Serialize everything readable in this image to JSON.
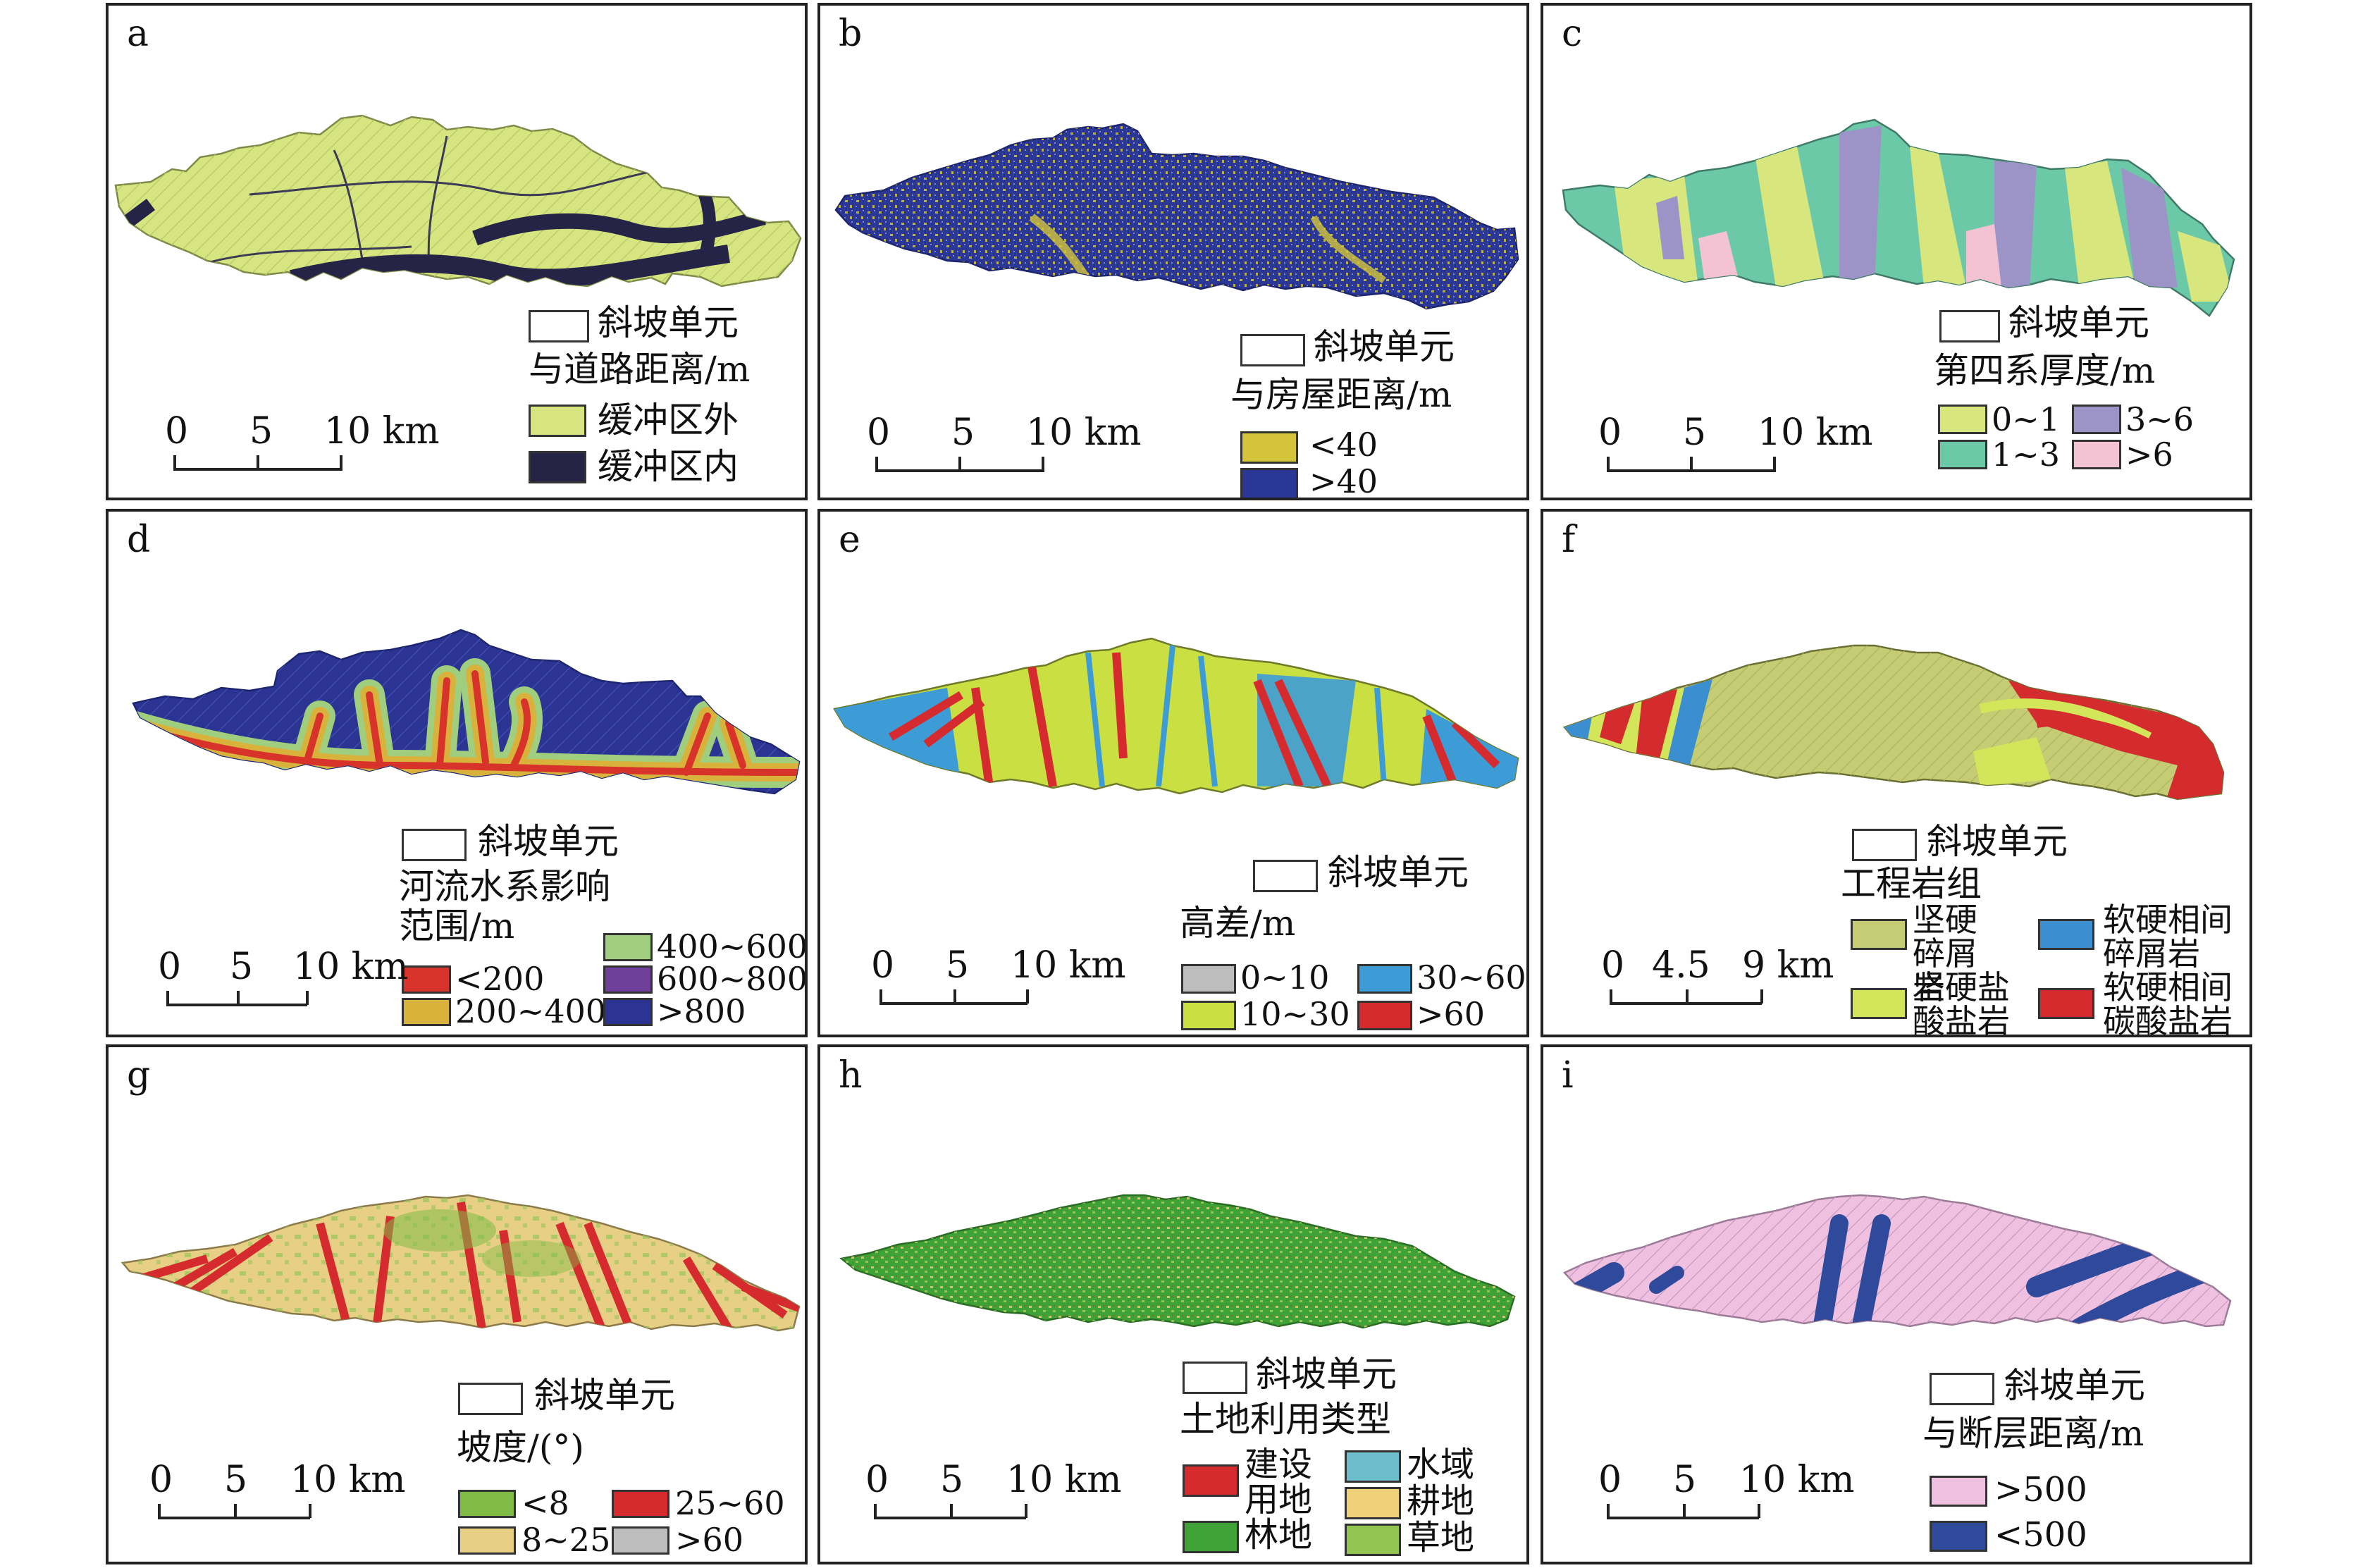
{
  "panels": [
    {
      "id": "a",
      "letter": "a",
      "unit_label": "斜坡单元",
      "subtitle": "与道路距离/m",
      "scale": {
        "labels": [
          "0",
          "5",
          "10 km"
        ]
      },
      "legend": [
        {
          "label": "缓冲区外",
          "color": "#d6e57f"
        },
        {
          "label": "缓冲区内",
          "color": "#252346"
        }
      ]
    },
    {
      "id": "b",
      "letter": "b",
      "unit_label": "斜坡单元",
      "subtitle": "与房屋距离/m",
      "scale": {
        "labels": [
          "0",
          "5",
          "10 km"
        ]
      },
      "legend": [
        {
          "label": "<40",
          "color": "#d4c43a"
        },
        {
          "label": ">40",
          "color": "#2b3796"
        }
      ]
    },
    {
      "id": "c",
      "letter": "c",
      "unit_label": "斜坡单元",
      "subtitle": "第四系厚度/m",
      "scale": {
        "labels": [
          "0",
          "5",
          "10 km"
        ]
      },
      "legend": [
        {
          "label": "0~1",
          "color": "#d8e67e"
        },
        {
          "label": "1~3",
          "color": "#6cc9a8"
        },
        {
          "label": "3~6",
          "color": "#9c93c6"
        },
        {
          "label": ">6",
          "color": "#f3c3d3"
        }
      ]
    },
    {
      "id": "d",
      "letter": "d",
      "unit_label": "斜坡单元",
      "subtitle": "河流水系影响范围/m",
      "scale": {
        "labels": [
          "0",
          "5",
          "10 km"
        ]
      },
      "legend": [
        {
          "label": "<200",
          "color": "#d7332b"
        },
        {
          "label": "200~400",
          "color": "#d9b23b"
        },
        {
          "label": "400~600",
          "color": "#9fcf7e"
        },
        {
          "label": "600~800",
          "color": "#6f3f9a"
        },
        {
          "label": ">800",
          "color": "#2c3493"
        }
      ]
    },
    {
      "id": "e",
      "letter": "e",
      "unit_label": "斜坡单元",
      "subtitle": "高差/m",
      "scale": {
        "labels": [
          "0",
          "5",
          "10 km"
        ]
      },
      "legend": [
        {
          "label": "0~10",
          "color": "#bdbdbd"
        },
        {
          "label": "10~30",
          "color": "#c9df42"
        },
        {
          "label": "30~60",
          "color": "#3d9cd6"
        },
        {
          "label": ">60",
          "color": "#d62b2e"
        }
      ]
    },
    {
      "id": "f",
      "letter": "f",
      "unit_label": "斜坡单元",
      "subtitle": "工程岩组",
      "scale": {
        "labels": [
          "0",
          "4.5",
          "9 km"
        ]
      },
      "legend": [
        {
          "label": "坚硬碎屑岩",
          "color": "#c5cc74"
        },
        {
          "label": "坚硬盐酸盐岩",
          "color": "#d3e55b"
        },
        {
          "label": "软硬相间碎屑岩",
          "color": "#3b8fd1"
        },
        {
          "label": "软硬相间碳酸盐岩",
          "color": "#d42b2e"
        }
      ]
    },
    {
      "id": "g",
      "letter": "g",
      "unit_label": "斜坡单元",
      "subtitle": "坡度/(°)",
      "scale": {
        "labels": [
          "0",
          "5",
          "10 km"
        ]
      },
      "legend": [
        {
          "label": "<8",
          "color": "#7fbb45"
        },
        {
          "label": "8~25",
          "color": "#e8cf86"
        },
        {
          "label": "25~60",
          "color": "#d62b2e"
        },
        {
          "label": ">60",
          "color": "#bdbdbd"
        }
      ]
    },
    {
      "id": "h",
      "letter": "h",
      "unit_label": "斜坡单元",
      "subtitle": "土地利用类型",
      "scale": {
        "labels": [
          "0",
          "5",
          "10 km"
        ]
      },
      "legend": [
        {
          "label": "建设用地",
          "color": "#d62b2e"
        },
        {
          "label": "林地",
          "color": "#3ea236"
        },
        {
          "label": "水域",
          "color": "#6dbdcc"
        },
        {
          "label": "耕地",
          "color": "#efd07a"
        },
        {
          "label": "草地",
          "color": "#92c451"
        }
      ]
    },
    {
      "id": "i",
      "letter": "i",
      "unit_label": "斜坡单元",
      "subtitle": "与断层距离/m",
      "scale": {
        "labels": [
          "0",
          "5",
          "10 km"
        ]
      },
      "legend": [
        {
          "label": ">500",
          "color": "#efc0df"
        },
        {
          "label": "<500",
          "color": "#2f4a9b"
        }
      ]
    }
  ]
}
